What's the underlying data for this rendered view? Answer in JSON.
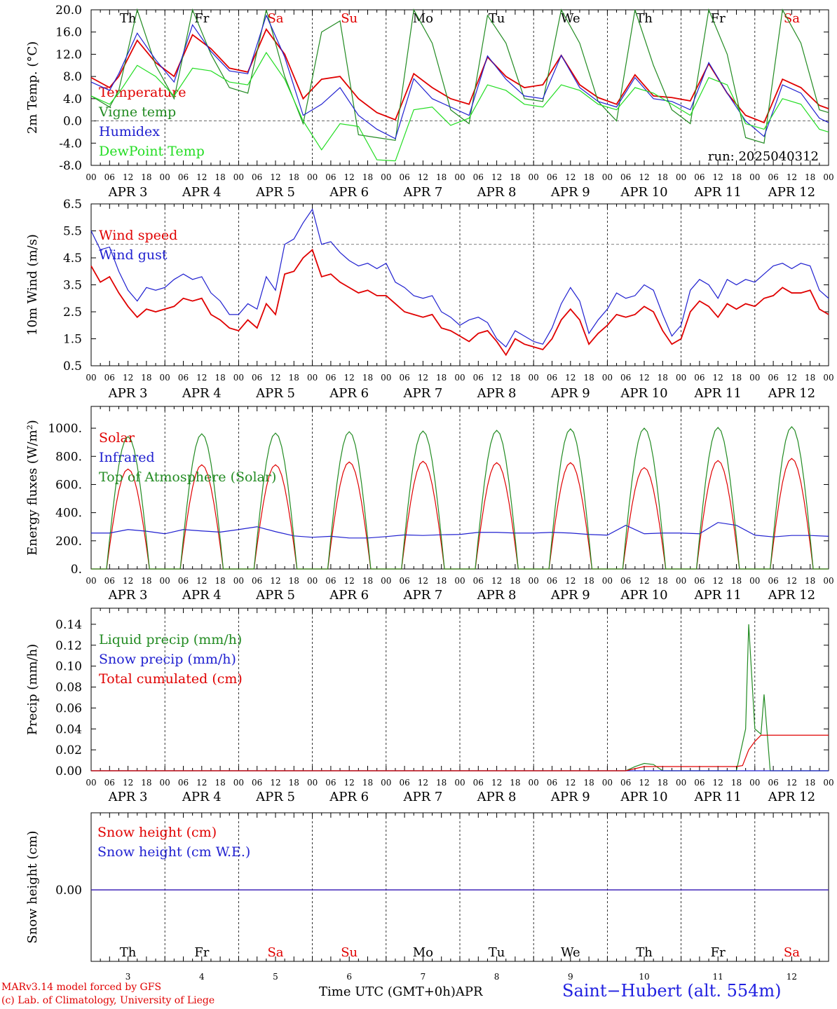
{
  "chart_data": [
    {
      "type": "line",
      "ylabel": "2m Temp. (°C)",
      "ylim": [
        -8,
        20
      ],
      "yticks": [
        "-8.0",
        "-4.0",
        "0.0",
        "4.0",
        "8.0",
        "12.0",
        "16.0",
        "20.0"
      ],
      "yticks_values": [
        -8,
        -4,
        0,
        4,
        8,
        12,
        16,
        20
      ],
      "dashed_ref": 0,
      "annotation": "run: 2025040312",
      "x_unit": "hours since Apr 3 00 UTC",
      "series": [
        {
          "name": "Temperature",
          "color": "#e00000",
          "x": [
            0,
            6,
            9,
            15,
            21,
            27,
            33,
            39,
            45,
            51,
            57,
            63,
            69,
            75,
            81,
            87,
            93,
            99,
            105,
            111,
            117,
            123,
            129,
            135,
            141,
            147,
            153,
            159,
            165,
            171,
            177,
            183,
            189,
            195,
            201,
            207,
            213,
            219,
            225,
            231,
            237,
            240
          ],
          "values": [
            7.8,
            6.0,
            8.0,
            14.5,
            10.5,
            8.0,
            15.5,
            13.0,
            9.5,
            8.8,
            16.5,
            12.0,
            4.0,
            7.5,
            8.0,
            4.0,
            1.5,
            0.2,
            8.5,
            6.0,
            4.0,
            3.0,
            11.5,
            8.0,
            6.0,
            6.5,
            11.8,
            6.5,
            4.2,
            3.0,
            8.3,
            4.5,
            4.2,
            3.6,
            10.3,
            5.0,
            1.0,
            -0.3,
            7.5,
            6.0,
            2.8,
            2.2
          ]
        },
        {
          "name": "Vigne temp",
          "color": "#228B22",
          "x": [
            0,
            6,
            9,
            15,
            21,
            27,
            33,
            39,
            45,
            51,
            57,
            63,
            69,
            75,
            81,
            87,
            93,
            99,
            105,
            111,
            117,
            123,
            129,
            135,
            141,
            147,
            153,
            159,
            165,
            171,
            177,
            183,
            189,
            195,
            201,
            207,
            213,
            219,
            225,
            231,
            237,
            240
          ],
          "values": [
            4.5,
            2.5,
            5.5,
            20,
            10.0,
            4.0,
            20,
            12.0,
            6.0,
            5.0,
            20,
            8.0,
            -0.5,
            16,
            18,
            -2.5,
            -3.0,
            -3.5,
            20,
            14,
            2.0,
            -0.5,
            19,
            14,
            4.0,
            3.5,
            20,
            14,
            3.5,
            0,
            20,
            10,
            2.0,
            -0.5,
            20,
            12,
            -3.0,
            -4.0,
            20,
            14,
            2.0,
            1.5
          ]
        },
        {
          "name": "Humidex",
          "color": "#2020d0",
          "x": [
            0,
            6,
            9,
            15,
            21,
            27,
            33,
            39,
            45,
            51,
            57,
            63,
            69,
            75,
            81,
            87,
            93,
            99,
            105,
            111,
            117,
            123,
            129,
            135,
            141,
            147,
            153,
            159,
            165,
            171,
            177,
            183,
            189,
            195,
            201,
            207,
            213,
            219,
            225,
            231,
            237,
            240
          ],
          "values": [
            7.0,
            5.5,
            8.5,
            15.8,
            11.0,
            7.0,
            17.3,
            12.5,
            9.0,
            8.5,
            19.0,
            11.5,
            1.0,
            3.0,
            6.0,
            1.0,
            -1.5,
            -3.2,
            7.6,
            4.0,
            2.5,
            1.0,
            11.7,
            7.5,
            4.5,
            4.0,
            11.8,
            6.0,
            3.5,
            2.5,
            7.8,
            4.0,
            3.5,
            2.0,
            10.5,
            5.0,
            0,
            -2.8,
            6.5,
            5.0,
            0.5,
            -0.3
          ]
        },
        {
          "name": "DewPoint Temp",
          "color": "#22dd22",
          "x": [
            0,
            6,
            9,
            15,
            21,
            27,
            33,
            39,
            45,
            51,
            57,
            63,
            69,
            75,
            81,
            87,
            93,
            99,
            105,
            111,
            117,
            123,
            129,
            135,
            141,
            147,
            153,
            159,
            165,
            171,
            177,
            183,
            189,
            195,
            201,
            207,
            213,
            219,
            225,
            231,
            237,
            240
          ],
          "values": [
            4.5,
            3.0,
            5.0,
            10.0,
            8.0,
            4.5,
            9.5,
            9.0,
            7.0,
            6.5,
            12.3,
            7.5,
            0,
            -5.2,
            -0.5,
            -1.0,
            -7.0,
            -7.2,
            2.0,
            2.5,
            -0.8,
            0.5,
            6.5,
            5.5,
            3.0,
            2.5,
            6.5,
            5.5,
            3.0,
            2.0,
            6.0,
            5.0,
            3.0,
            1.0,
            7.8,
            6.5,
            -0.5,
            -1.5,
            4.0,
            3.0,
            -1.5,
            -2.0
          ]
        }
      ]
    },
    {
      "type": "line",
      "ylabel": "10m Wind (m/s)",
      "ylim": [
        0.5,
        6.5
      ],
      "yticks": [
        "0.5",
        "1.5",
        "2.5",
        "3.5",
        "4.5",
        "5.5",
        "6.5"
      ],
      "yticks_values": [
        0.5,
        1.5,
        2.5,
        3.5,
        4.5,
        5.5,
        6.5
      ],
      "dashed_ref": 5,
      "x_unit": "hours since Apr 3 00 UTC",
      "series": [
        {
          "name": "Wind speed",
          "color": "#e00000",
          "x": [
            0,
            3,
            6,
            9,
            12,
            15,
            18,
            21,
            24,
            27,
            30,
            33,
            36,
            39,
            42,
            45,
            48,
            51,
            54,
            57,
            60,
            63,
            66,
            69,
            72,
            75,
            78,
            81,
            84,
            87,
            90,
            93,
            96,
            99,
            102,
            105,
            108,
            111,
            114,
            117,
            120,
            123,
            126,
            129,
            132,
            135,
            138,
            141,
            144,
            147,
            150,
            153,
            156,
            159,
            162,
            165,
            168,
            171,
            174,
            177,
            180,
            183,
            186,
            189,
            192,
            195,
            198,
            201,
            204,
            207,
            210,
            213,
            216,
            219,
            222,
            225,
            228,
            231,
            234,
            237,
            240
          ],
          "values": [
            4.2,
            3.6,
            3.8,
            3.2,
            2.7,
            2.3,
            2.6,
            2.5,
            2.6,
            2.7,
            3.0,
            2.9,
            3.0,
            2.4,
            2.2,
            1.9,
            1.8,
            2.2,
            1.9,
            2.8,
            2.4,
            3.9,
            4.0,
            4.5,
            4.8,
            3.8,
            3.9,
            3.6,
            3.4,
            3.2,
            3.3,
            3.1,
            3.1,
            2.8,
            2.5,
            2.4,
            2.3,
            2.4,
            1.9,
            1.8,
            1.6,
            1.4,
            1.7,
            1.8,
            1.4,
            0.9,
            1.5,
            1.3,
            1.2,
            1.1,
            1.5,
            2.2,
            2.6,
            2.2,
            1.3,
            1.7,
            2.0,
            2.4,
            2.3,
            2.4,
            2.7,
            2.5,
            1.8,
            1.3,
            1.5,
            2.5,
            2.9,
            2.7,
            2.3,
            2.8,
            2.6,
            2.8,
            2.7,
            3.0,
            3.1,
            3.4,
            3.2,
            3.2,
            3.3,
            2.6,
            2.4
          ]
        },
        {
          "name": "Wind gust",
          "color": "#2020d0",
          "x": [
            0,
            3,
            6,
            9,
            12,
            15,
            18,
            21,
            24,
            27,
            30,
            33,
            36,
            39,
            42,
            45,
            48,
            51,
            54,
            57,
            60,
            63,
            66,
            69,
            72,
            75,
            78,
            81,
            84,
            87,
            90,
            93,
            96,
            99,
            102,
            105,
            108,
            111,
            114,
            117,
            120,
            123,
            126,
            129,
            132,
            135,
            138,
            141,
            144,
            147,
            150,
            153,
            156,
            159,
            162,
            165,
            168,
            171,
            174,
            177,
            180,
            183,
            186,
            189,
            192,
            195,
            198,
            201,
            204,
            207,
            210,
            213,
            216,
            219,
            222,
            225,
            228,
            231,
            234,
            237,
            240
          ],
          "values": [
            5.5,
            4.8,
            4.9,
            4.0,
            3.3,
            2.9,
            3.4,
            3.3,
            3.4,
            3.7,
            3.9,
            3.7,
            3.8,
            3.2,
            2.9,
            2.4,
            2.4,
            2.8,
            2.6,
            3.8,
            3.3,
            5.0,
            5.2,
            5.8,
            6.3,
            5.0,
            5.1,
            4.7,
            4.4,
            4.2,
            4.3,
            4.1,
            4.3,
            3.6,
            3.4,
            3.1,
            3.0,
            3.1,
            2.5,
            2.3,
            2.0,
            2.2,
            2.3,
            2.1,
            1.5,
            1.2,
            1.8,
            1.6,
            1.4,
            1.3,
            1.9,
            2.8,
            3.4,
            2.9,
            1.7,
            2.2,
            2.6,
            3.2,
            3.0,
            3.1,
            3.5,
            3.3,
            2.4,
            1.6,
            2.0,
            3.3,
            3.7,
            3.5,
            3.0,
            3.7,
            3.5,
            3.7,
            3.6,
            3.9,
            4.2,
            4.3,
            4.1,
            4.3,
            4.2,
            3.3,
            3.0
          ]
        }
      ]
    },
    {
      "type": "line",
      "ylabel": "Energy fluxes (W/m²)",
      "ylim": [
        0,
        1100
      ],
      "yticks": [
        "0.",
        "200.",
        "400.",
        "600.",
        "800.",
        "1000."
      ],
      "yticks_values": [
        0,
        200,
        400,
        600,
        800,
        1000
      ],
      "x_unit": "hours since Apr 3 00 UTC",
      "series": [
        {
          "name": "Solar",
          "color": "#e00000",
          "diurnal_peaks": [
            710,
            740,
            740,
            760,
            765,
            755,
            755,
            720,
            770,
            785
          ]
        },
        {
          "name": "Infrared",
          "color": "#2020d0",
          "x": [
            0,
            6,
            12,
            18,
            24,
            30,
            36,
            42,
            48,
            54,
            60,
            66,
            72,
            78,
            84,
            90,
            96,
            102,
            108,
            114,
            120,
            126,
            132,
            138,
            144,
            150,
            156,
            162,
            168,
            174,
            180,
            186,
            192,
            198,
            204,
            210,
            216,
            222,
            228,
            234,
            240
          ],
          "values": [
            255,
            255,
            280,
            268,
            250,
            280,
            270,
            262,
            280,
            300,
            265,
            235,
            225,
            232,
            220,
            220,
            230,
            242,
            238,
            243,
            245,
            260,
            260,
            255,
            255,
            260,
            255,
            245,
            240,
            310,
            250,
            255,
            255,
            250,
            330,
            310,
            240,
            228,
            238,
            238,
            232
          ]
        },
        {
          "name": "Top of Atmosphere (Solar)",
          "color": "#228B22",
          "diurnal_peaks": [
            940,
            960,
            965,
            975,
            980,
            985,
            995,
            1000,
            1005,
            1010
          ]
        }
      ]
    },
    {
      "type": "line",
      "ylabel": "Precip (mm/h)",
      "ylim": [
        0,
        0.15
      ],
      "yticks": [
        "0.00",
        "0.02",
        "0.04",
        "0.06",
        "0.08",
        "0.10",
        "0.12",
        "0.14"
      ],
      "yticks_values": [
        0,
        0.02,
        0.04,
        0.06,
        0.08,
        0.1,
        0.12,
        0.14
      ],
      "x_unit": "hours since Apr 3 00 UTC",
      "series": [
        {
          "name": "Liquid precip (mm/h)",
          "color": "#228B22",
          "x": [
            0,
            174,
            177,
            180,
            183,
            186,
            210,
            213,
            214,
            216,
            218,
            219,
            221,
            240
          ],
          "values": [
            0,
            0,
            0.004,
            0.007,
            0.006,
            0,
            0,
            0.04,
            0.14,
            0.04,
            0.035,
            0.073,
            0,
            0
          ]
        },
        {
          "name": "Snow precip (mm/h)",
          "color": "#2020d0",
          "x": [
            0,
            240
          ],
          "values": [
            0,
            0
          ]
        },
        {
          "name": "Total cumulated (cm)",
          "color": "#e00000",
          "x": [
            0,
            174,
            177,
            180,
            186,
            210,
            212,
            214,
            216,
            218,
            220,
            240
          ],
          "values": [
            0,
            0,
            0.002,
            0.004,
            0.004,
            0.004,
            0.005,
            0.02,
            0.028,
            0.034,
            0.034,
            0.034
          ]
        }
      ]
    },
    {
      "type": "line",
      "ylabel": "Snow height (cm)",
      "yticks": [
        "0.00"
      ],
      "x_unit": "hours since Apr 3 00 UTC",
      "series": [
        {
          "name": "Snow height (cm)",
          "color": "#e00000",
          "x": [
            0,
            240
          ],
          "values": [
            0,
            0
          ]
        },
        {
          "name": "Snow height (cm W.E.)",
          "color": "#2020d0",
          "x": [
            0,
            240
          ],
          "values": [
            0,
            0
          ]
        }
      ]
    }
  ],
  "hour_ticks": [
    "00",
    "06",
    "12",
    "18"
  ],
  "dates": [
    "APR  3",
    "APR  4",
    "APR  5",
    "APR  6",
    "APR  7",
    "APR  8",
    "APR  9",
    "APR 10",
    "APR 11",
    "APR 12"
  ],
  "weekdays": [
    "Th",
    "Fr",
    "Sa",
    "Su",
    "Mo",
    "Tu",
    "We",
    "Th",
    "Fr",
    "Sa"
  ],
  "weekday_colors": [
    "#000",
    "#000",
    "#e00000",
    "#e00000",
    "#000",
    "#000",
    "#000",
    "#000",
    "#000",
    "#e00000"
  ],
  "day_numbers": [
    "3",
    "4",
    "5",
    "6",
    "7",
    "8",
    "9",
    "10",
    "11",
    "12"
  ],
  "footer": {
    "credit_line1": "MARv3.14 model forced by GFS",
    "credit_line2": "(c) Lab. of Climatology, University of Liege",
    "x_title": "Time UTC (GMT+0h)",
    "month": "APR",
    "station": "Saint−Hubert (alt. 554m)"
  }
}
